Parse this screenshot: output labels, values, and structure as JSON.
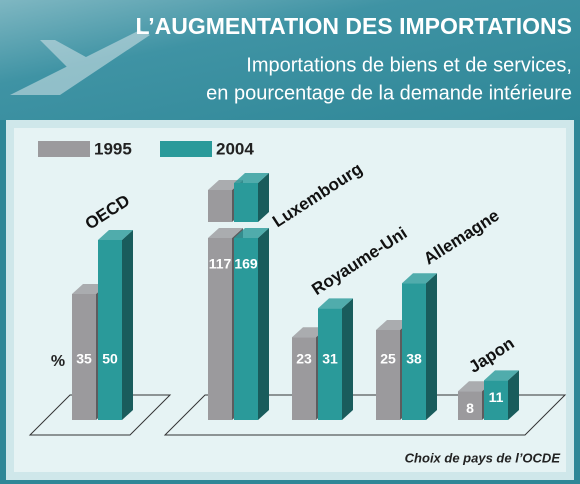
{
  "chart_data": {
    "type": "bar",
    "title": "L’AUGMENTATION DES IMPORTATIONS",
    "subtitle": [
      "Importations de biens et de services,",
      "en pourcentage de la demande intérieure"
    ],
    "unit_label": "%",
    "source": "Choix de pays de l’OCDE",
    "categories": [
      "OECD",
      "Luxembourg",
      "Royaume-Uni",
      "Allemagne",
      "Japon"
    ],
    "series": [
      {
        "name": "1995",
        "color": "#9b9a9d",
        "values": [
          35,
          117,
          23,
          25,
          8
        ]
      },
      {
        "name": "2004",
        "color": "#2a9a9a",
        "values": [
          50,
          169,
          31,
          38,
          11
        ]
      }
    ]
  }
}
